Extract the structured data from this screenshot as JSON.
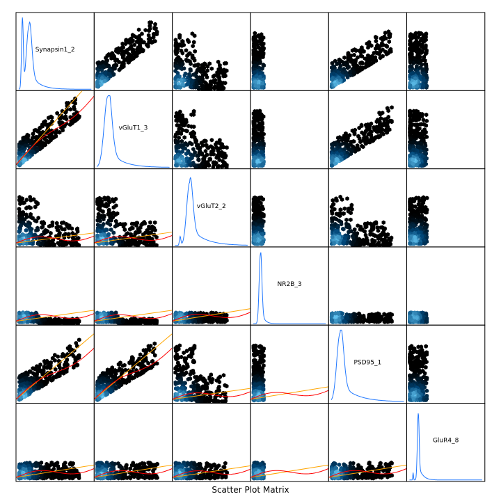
{
  "chart_data": {
    "type": "scatter",
    "title": "Scatter Plot Matrix",
    "variables": [
      "Synapsin1_2",
      "vGluT1_3",
      "vGluT2_2",
      "NR2B_3",
      "PSD95_1",
      "GluR4_8"
    ],
    "diagonal": "density",
    "off_diagonal_upper": "hexbin",
    "off_diagonal_lower": "hexbin_with_fit_lines",
    "fit_lines": [
      {
        "name": "linear",
        "color": "#ffa500"
      },
      {
        "name": "smooth",
        "color": "#ff0000"
      }
    ],
    "colors": {
      "density_line": "#1f77ff",
      "hex_high": "#6fd3ff",
      "hex_low": "#000000"
    },
    "axes_ticks_visible": false
  }
}
